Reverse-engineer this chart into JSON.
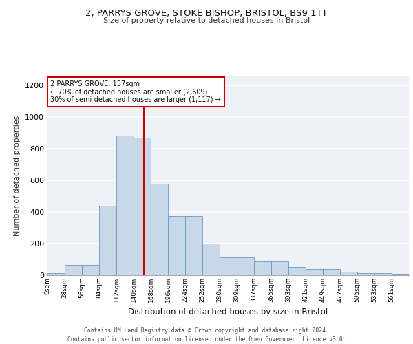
{
  "title_line1": "2, PARRYS GROVE, STOKE BISHOP, BRISTOL, BS9 1TT",
  "title_line2": "Size of property relative to detached houses in Bristol",
  "xlabel": "Distribution of detached houses by size in Bristol",
  "ylabel": "Number of detached properties",
  "bin_labels": [
    "0sqm",
    "28sqm",
    "56sqm",
    "84sqm",
    "112sqm",
    "140sqm",
    "168sqm",
    "196sqm",
    "224sqm",
    "252sqm",
    "280sqm",
    "309sqm",
    "337sqm",
    "365sqm",
    "393sqm",
    "421sqm",
    "449sqm",
    "477sqm",
    "505sqm",
    "533sqm",
    "561sqm"
  ],
  "bar_values": [
    12,
    65,
    65,
    440,
    880,
    870,
    580,
    375,
    375,
    200,
    115,
    115,
    85,
    85,
    50,
    40,
    40,
    20,
    15,
    15,
    8
  ],
  "bar_color": "#c8d8e8",
  "bar_edge_color": "#6699cc",
  "property_sqm": 157,
  "vline_color": "#cc0000",
  "annotation_text": "2 PARRYS GROVE: 157sqm\n← 70% of detached houses are smaller (2,609)\n30% of semi-detached houses are larger (1,117) →",
  "annotation_box_color": "#cc0000",
  "ylim": [
    0,
    1260
  ],
  "yticks": [
    0,
    200,
    400,
    600,
    800,
    1000,
    1200
  ],
  "footer_line1": "Contains HM Land Registry data © Crown copyright and database right 2024.",
  "footer_line2": "Contains public sector information licensed under the Open Government Licence v3.0.",
  "background_color": "#eef2f7",
  "grid_color": "#ffffff"
}
